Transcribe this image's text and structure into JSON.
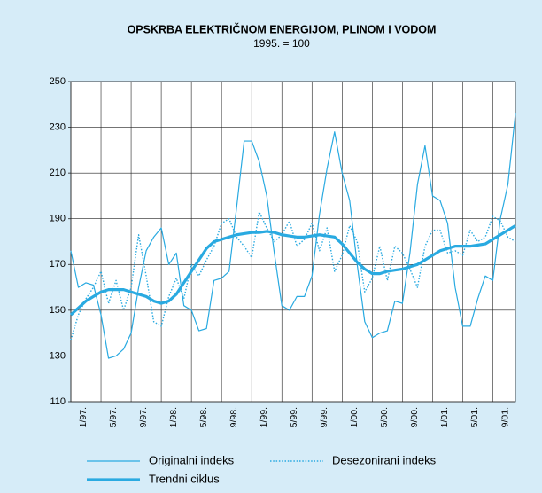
{
  "chart_data": {
    "type": "line",
    "title": "OPSKRBA ELEKTRIČNOM ENERGIJOM, PLINOM I VODOM",
    "subtitle": "1995. = 100",
    "categories": [
      "1/97.",
      null,
      null,
      null,
      "5/97.",
      null,
      null,
      null,
      "9/97.",
      null,
      null,
      null,
      "1/98.",
      null,
      null,
      null,
      "5/98.",
      null,
      null,
      null,
      "9/98.",
      null,
      null,
      null,
      "1/99.",
      null,
      null,
      null,
      "5/99.",
      null,
      null,
      null,
      "9/99.",
      null,
      null,
      null,
      "1/00.",
      null,
      null,
      null,
      "5/00.",
      null,
      null,
      null,
      "9/00.",
      null,
      null,
      null,
      "1/01.",
      null,
      null,
      null,
      "5/01.",
      null,
      null,
      null,
      "9/01.",
      null,
      null,
      null
    ],
    "series": [
      {
        "name": "Originalni indeks",
        "color": "#29aae1",
        "line_width": 1.2,
        "dash": "solid",
        "values": [
          176,
          160,
          162,
          161,
          148,
          129,
          130,
          133,
          140,
          160,
          176,
          182,
          186,
          170,
          175,
          152,
          150,
          141,
          142,
          163,
          164,
          167,
          195,
          224,
          224,
          215,
          200,
          175,
          152,
          150,
          156,
          156,
          165,
          192,
          212,
          228,
          210,
          198,
          170,
          145,
          138,
          140,
          141,
          154,
          153,
          175,
          205,
          222,
          200,
          198,
          188,
          160,
          143,
          143,
          155,
          165,
          163,
          190,
          205,
          236
        ]
      },
      {
        "name": "Desezonirani indeks",
        "color": "#29aae1",
        "line_width": 1.4,
        "dash": "dotted",
        "values": [
          137,
          148,
          155,
          160,
          167,
          153,
          163,
          150,
          160,
          183,
          165,
          145,
          143,
          156,
          164,
          155,
          170,
          165,
          172,
          178,
          188,
          190,
          182,
          178,
          173,
          193,
          186,
          180,
          183,
          189,
          178,
          181,
          188,
          176,
          186,
          167,
          174,
          187,
          180,
          158,
          164,
          178,
          163,
          178,
          175,
          168,
          160,
          178,
          185,
          185,
          175,
          176,
          174,
          185,
          180,
          182,
          191,
          189,
          182,
          180
        ]
      },
      {
        "name": "Trendni ciklus",
        "color": "#29aae1",
        "line_width": 3.2,
        "dash": "solid",
        "values": [
          148,
          151,
          154,
          156,
          158,
          159,
          159,
          159,
          158,
          157,
          156,
          154,
          153,
          154,
          157,
          162,
          167,
          172,
          177,
          180,
          181,
          182,
          183,
          183.5,
          184,
          184,
          184.5,
          184,
          183,
          182.5,
          182,
          182,
          182.5,
          183,
          182.5,
          182,
          179,
          175,
          171,
          168,
          166,
          166,
          167,
          167.5,
          168,
          169,
          170,
          172,
          174,
          176,
          177,
          178,
          178,
          178,
          178.5,
          179,
          181,
          183,
          185,
          187
        ]
      }
    ],
    "ylim": [
      110,
      250
    ],
    "yticks": [
      110,
      130,
      150,
      170,
      190,
      210,
      230,
      250
    ],
    "grid": true
  }
}
